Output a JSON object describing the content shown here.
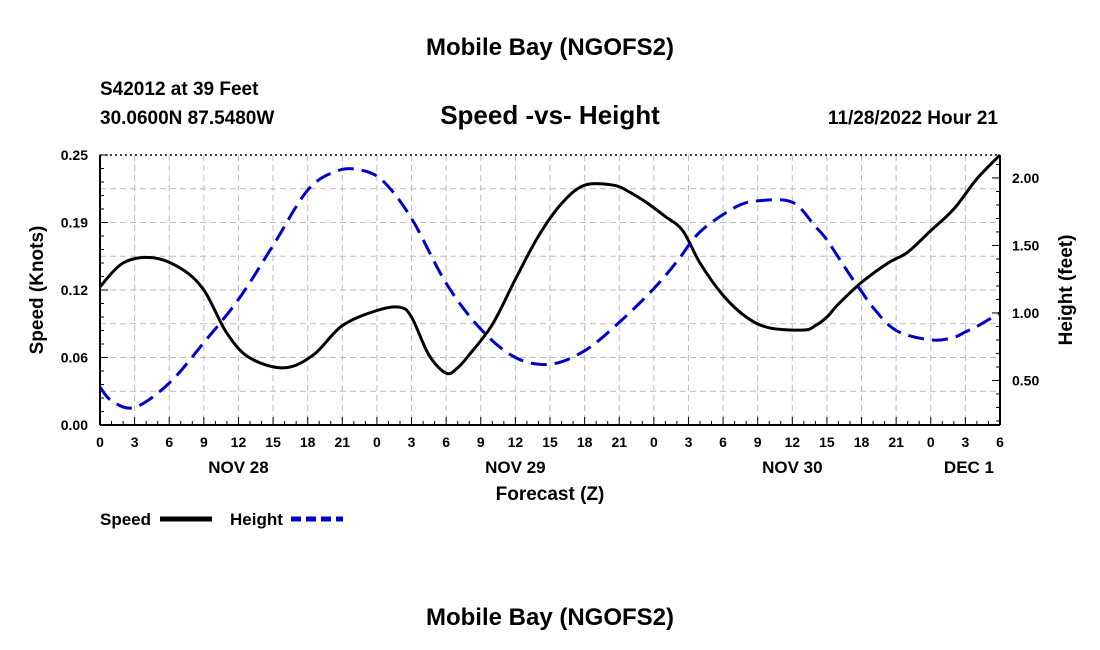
{
  "page_title": "Mobile Bay (NGOFS2)",
  "station": {
    "id_line": "S42012 at 39 Feet",
    "coords_line": "30.0600N  87.5480W"
  },
  "chart_subtitle": "Speed -vs- Height",
  "forecast_time": "11/28/2022 Hour 21",
  "footer_title": "Mobile Bay (NGOFS2)",
  "colors": {
    "speed": "#000000",
    "height": "#0000cc",
    "grid": "#bbbbbb"
  },
  "chart_data": {
    "type": "line",
    "title": "Speed -vs- Height",
    "xlabel": "Forecast (Z)",
    "ylabel": "Speed (Knots)",
    "y2label": "Height (feet)",
    "xlim": [
      0,
      78
    ],
    "ylim": [
      0,
      0.25
    ],
    "y2lim": [
      0.17,
      2.17
    ],
    "x_tick_step_hours": 3,
    "x_tick_labels": [
      "0",
      "3",
      "6",
      "9",
      "12",
      "15",
      "18",
      "21",
      "0",
      "3",
      "6",
      "9",
      "12",
      "15",
      "18",
      "21",
      "0",
      "3",
      "6",
      "9",
      "12",
      "15",
      "18",
      "21",
      "0",
      "3",
      "6"
    ],
    "day_labels": [
      {
        "hour": 12,
        "label": "NOV 28"
      },
      {
        "hour": 36,
        "label": "NOV 29"
      },
      {
        "hour": 60,
        "label": "NOV 30"
      },
      {
        "hour": 78,
        "label": "DEC 1"
      }
    ],
    "y_ticks": [
      {
        "value": 0.0,
        "label": "0.00"
      },
      {
        "value": 0.0625,
        "label": "0.06"
      },
      {
        "value": 0.125,
        "label": "0.12"
      },
      {
        "value": 0.1875,
        "label": "0.19"
      },
      {
        "value": 0.25,
        "label": "0.25"
      }
    ],
    "y2_ticks": [
      {
        "value": 0.5,
        "label": "0.50"
      },
      {
        "value": 1.0,
        "label": "1.00"
      },
      {
        "value": 1.5,
        "label": "1.50"
      },
      {
        "value": 2.0,
        "label": "2.00"
      }
    ],
    "legend_position": "bottom-left",
    "series": [
      {
        "name": "Speed",
        "axis": "left",
        "style": "solid",
        "x": [
          0,
          2,
          4.5,
          7,
          9,
          11,
          13,
          16,
          18.5,
          21,
          24,
          26,
          27,
          28.5,
          30,
          31,
          32,
          34,
          36,
          38,
          40,
          42,
          44.5,
          46,
          47.5,
          49,
          50.5,
          52,
          54,
          56,
          58,
          61,
          62,
          63,
          64,
          66,
          68.3,
          70,
          72,
          74,
          76,
          78
        ],
        "values": [
          0.128,
          0.15,
          0.155,
          0.145,
          0.125,
          0.085,
          0.062,
          0.053,
          0.065,
          0.092,
          0.106,
          0.109,
          0.1,
          0.065,
          0.048,
          0.053,
          0.065,
          0.093,
          0.135,
          0.175,
          0.205,
          0.222,
          0.222,
          0.215,
          0.205,
          0.193,
          0.18,
          0.15,
          0.12,
          0.1,
          0.09,
          0.088,
          0.092,
          0.1,
          0.112,
          0.132,
          0.15,
          0.16,
          0.18,
          0.2,
          0.228,
          0.25
        ]
      },
      {
        "name": "Height",
        "axis": "right",
        "style": "dashed",
        "x": [
          0,
          1,
          3,
          6,
          9,
          12,
          15,
          18,
          20.5,
          22.5,
          24.5,
          27,
          30,
          33,
          36,
          39,
          42,
          45,
          48,
          50,
          52,
          55,
          57,
          60,
          62,
          63,
          65,
          66,
          67,
          69,
          72,
          74,
          75,
          76,
          77,
          78
        ],
        "values": [
          0.45,
          0.35,
          0.3,
          0.48,
          0.78,
          1.1,
          1.5,
          1.91,
          2.05,
          2.06,
          1.98,
          1.7,
          1.22,
          0.88,
          0.67,
          0.62,
          0.72,
          0.93,
          1.18,
          1.38,
          1.6,
          1.78,
          1.83,
          1.82,
          1.64,
          1.54,
          1.28,
          1.16,
          1.04,
          0.87,
          0.8,
          0.82,
          0.86,
          0.9,
          0.95,
          1.0
        ]
      }
    ]
  }
}
